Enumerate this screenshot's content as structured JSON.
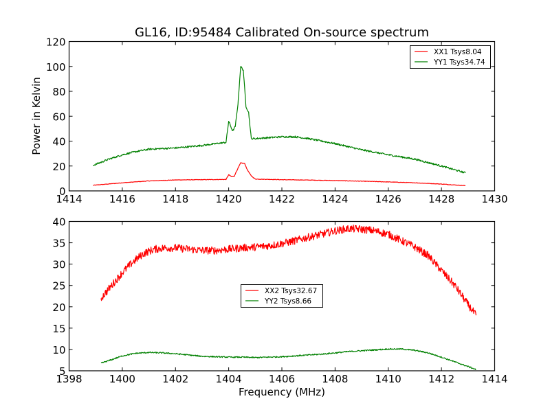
{
  "colors": {
    "xx": "#ff0000",
    "yy": "#008000",
    "axis": "#000000",
    "background": "#ffffff"
  },
  "chart_data": [
    {
      "type": "line",
      "title": "GL16, ID:95484 Calibrated On-source spectrum",
      "xlabel": "",
      "ylabel": "Power in Kelvin",
      "xlim": [
        1414,
        1430
      ],
      "ylim": [
        0,
        120
      ],
      "xticks": [
        "1414",
        "1416",
        "1418",
        "1420",
        "1422",
        "1424",
        "1426",
        "1428",
        "1430"
      ],
      "yticks": [
        "0",
        "20",
        "40",
        "60",
        "80",
        "100",
        "120"
      ],
      "grid": false,
      "legend_position": "top-right",
      "series": [
        {
          "name": "XX1 Tsys8.04",
          "color": "#ff0000",
          "x": [
            1414.9,
            1416,
            1417,
            1418,
            1419,
            1419.9,
            1420.0,
            1420.1,
            1420.2,
            1420.3,
            1420.45,
            1420.6,
            1420.7,
            1420.85,
            1421.0,
            1422,
            1423,
            1424,
            1425,
            1426,
            1427,
            1428,
            1428.9
          ],
          "y": [
            4.5,
            6.5,
            8.0,
            8.8,
            9.0,
            9.2,
            13.0,
            11.5,
            11.5,
            16.0,
            22.5,
            22.0,
            17.0,
            12.0,
            9.5,
            9.0,
            8.7,
            8.3,
            7.8,
            7.2,
            6.5,
            5.5,
            4.2
          ]
        },
        {
          "name": "YY1 Tsys34.74",
          "color": "#008000",
          "x": [
            1414.9,
            1415.5,
            1416,
            1416.5,
            1417,
            1418,
            1419,
            1419.9,
            1420.0,
            1420.15,
            1420.25,
            1420.35,
            1420.45,
            1420.55,
            1420.65,
            1420.75,
            1420.85,
            1421.0,
            1422,
            1422.5,
            1423,
            1424,
            1425,
            1426,
            1427,
            1428,
            1428.9
          ],
          "y": [
            20.5,
            25.5,
            29.0,
            31.5,
            33.5,
            34.5,
            36.5,
            39.0,
            56.0,
            48.0,
            52.0,
            70.0,
            100.0,
            97.0,
            68.0,
            63.0,
            42.0,
            42.0,
            43.5,
            43.5,
            42.0,
            38.0,
            33.0,
            29.0,
            25.5,
            20.0,
            14.5
          ]
        }
      ]
    },
    {
      "type": "line",
      "title": "",
      "xlabel": "Frequency (MHz)",
      "ylabel": "",
      "xlim": [
        1398,
        1414
      ],
      "ylim": [
        5,
        40
      ],
      "xticks": [
        "1398",
        "1400",
        "1402",
        "1404",
        "1406",
        "1408",
        "1410",
        "1412",
        "1414"
      ],
      "yticks": [
        "5",
        "10",
        "15",
        "20",
        "25",
        "30",
        "35",
        "40"
      ],
      "grid": false,
      "legend_position": "center",
      "series": [
        {
          "name": "XX2 Tsys32.67",
          "color": "#ff0000",
          "x": [
            1399.2,
            1399.6,
            1400.0,
            1400.4,
            1400.8,
            1401.2,
            1401.6,
            1402.0,
            1402.5,
            1403.0,
            1403.5,
            1404.0,
            1404.5,
            1405.0,
            1405.5,
            1406.0,
            1406.5,
            1407.0,
            1407.5,
            1408.0,
            1408.5,
            1409.0,
            1409.5,
            1410.0,
            1410.5,
            1411.0,
            1411.5,
            1412.0,
            1412.5,
            1413.0,
            1413.3
          ],
          "y": [
            22.0,
            25.0,
            28.0,
            30.5,
            32.5,
            33.5,
            33.8,
            33.8,
            33.5,
            33.2,
            33.2,
            33.5,
            33.8,
            34.0,
            34.3,
            34.8,
            35.5,
            36.3,
            37.0,
            37.8,
            38.3,
            38.2,
            37.8,
            37.0,
            35.5,
            34.0,
            32.0,
            28.5,
            25.0,
            20.5,
            18.0
          ]
        },
        {
          "name": "YY2 Tsys8.66",
          "color": "#008000",
          "x": [
            1399.2,
            1399.6,
            1400.0,
            1400.5,
            1401.0,
            1401.5,
            1402.0,
            1402.5,
            1403.0,
            1403.5,
            1404.0,
            1404.5,
            1405.0,
            1405.5,
            1406.0,
            1406.5,
            1407.0,
            1407.5,
            1408.0,
            1408.5,
            1409.0,
            1409.5,
            1410.0,
            1410.5,
            1411.0,
            1411.5,
            1412.0,
            1412.5,
            1413.0,
            1413.3
          ],
          "y": [
            6.8,
            7.6,
            8.5,
            9.1,
            9.3,
            9.2,
            9.0,
            8.7,
            8.4,
            8.3,
            8.2,
            8.2,
            8.1,
            8.2,
            8.3,
            8.5,
            8.7,
            8.9,
            9.2,
            9.5,
            9.7,
            9.9,
            10.1,
            10.1,
            9.8,
            9.2,
            8.2,
            7.1,
            6.0,
            5.3
          ]
        }
      ]
    }
  ]
}
